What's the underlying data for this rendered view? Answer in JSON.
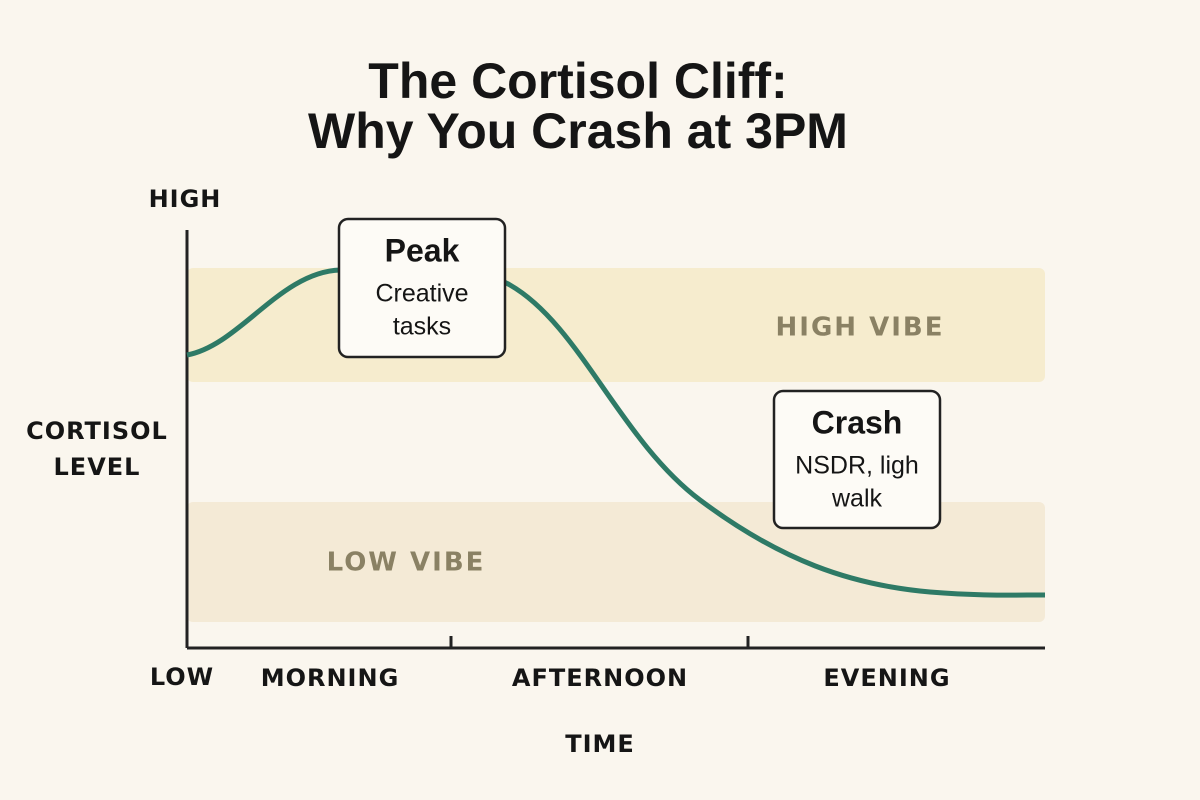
{
  "title": {
    "lines": [
      "The Cortisol Cliff:",
      "Why You Crash at 3PM"
    ]
  },
  "y_axis": {
    "high": "HIGH",
    "label": [
      "CORTISOL",
      "LEVEL"
    ],
    "low": "LOW"
  },
  "x_axis": {
    "categories": [
      "MORNING",
      "AFTERNOON",
      "EVENING"
    ],
    "label": "TIME"
  },
  "bands": {
    "high": "HIGH VIBE",
    "low": "LOW VIBE"
  },
  "annotations": [
    {
      "heading": "Peak",
      "lines": [
        "Creative",
        "tasks"
      ]
    },
    {
      "heading": "Crash",
      "lines": [
        "NSDR, ligh",
        "walk"
      ]
    }
  ]
}
